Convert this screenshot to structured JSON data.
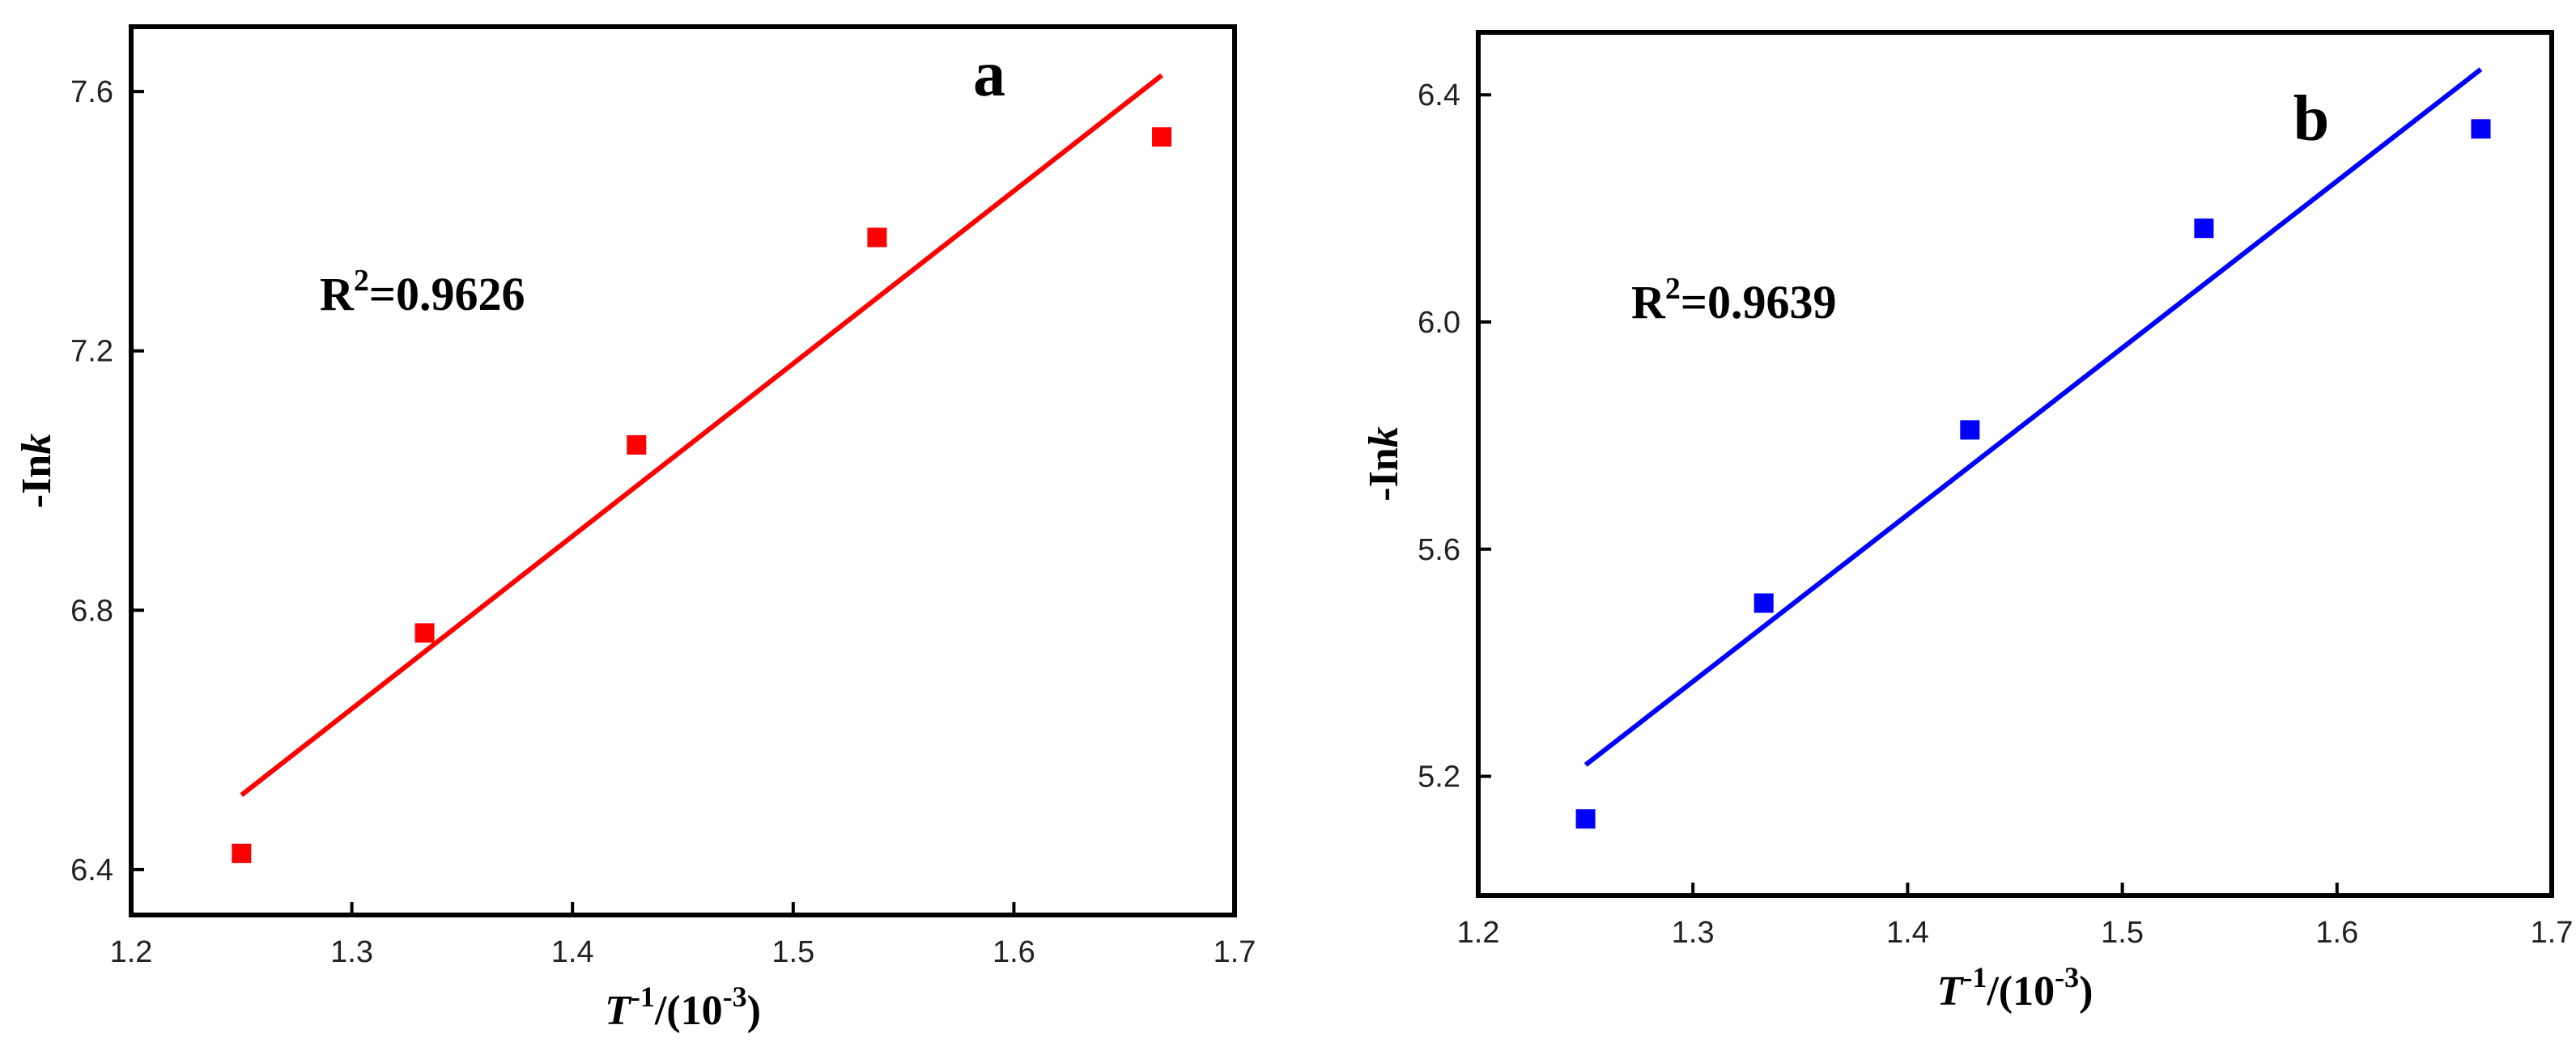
{
  "chart_data": [
    {
      "type": "scatter",
      "panel_label": "a",
      "r2_label": "R",
      "r2_sup": "2",
      "r2_value": "=0.9626",
      "xlabel": "T",
      "xlabel_sup": "-1",
      "xlabel_rest": "/(10",
      "xlabel_rest_sup": "-3",
      "xlabel_close": ")",
      "ylabel_prefix": "-In",
      "ylabel_italic": "k",
      "xlim": [
        1.2,
        1.7
      ],
      "ylim": [
        6.33,
        7.7
      ],
      "xticks": [
        1.2,
        1.3,
        1.4,
        1.5,
        1.6,
        1.7
      ],
      "xtick_labels": [
        "1.2",
        "1.3",
        "1.4",
        "1.5",
        "1.6",
        "1.7"
      ],
      "yticks": [
        6.4,
        6.8,
        7.2,
        7.6
      ],
      "ytick_labels": [
        "6.4",
        "6.8",
        "7.2",
        "7.6"
      ],
      "series": [
        {
          "x": [
            1.25,
            1.333,
            1.429,
            1.538,
            1.667
          ],
          "y": [
            6.425,
            6.765,
            7.055,
            7.375,
            7.53
          ]
        }
      ],
      "fit_line": {
        "x": [
          1.25,
          1.667
        ],
        "y": [
          6.515,
          7.625
        ]
      },
      "color": "#ff0000"
    },
    {
      "type": "scatter",
      "panel_label": "b",
      "r2_label": "R",
      "r2_sup": "2",
      "r2_value": "=0.9639",
      "xlabel": "T",
      "xlabel_sup": "-1",
      "xlabel_rest": "/(10",
      "xlabel_rest_sup": "-3",
      "xlabel_close": ")",
      "ylabel_prefix": "-In",
      "ylabel_italic": "k",
      "xlim": [
        1.2,
        1.7
      ],
      "ylim": [
        4.99,
        6.51
      ],
      "xticks": [
        1.2,
        1.3,
        1.4,
        1.5,
        1.6,
        1.7
      ],
      "xtick_labels": [
        "1.2",
        "1.3",
        "1.4",
        "1.5",
        "1.6",
        "1.7"
      ],
      "yticks": [
        5.2,
        5.6,
        6.0,
        6.4
      ],
      "ytick_labels": [
        "5.2",
        "5.6",
        "6.0",
        "6.4"
      ],
      "series": [
        {
          "x": [
            1.25,
            1.333,
            1.429,
            1.538,
            1.667
          ],
          "y": [
            5.125,
            5.505,
            5.81,
            6.165,
            6.34
          ]
        }
      ],
      "fit_line": {
        "x": [
          1.25,
          1.667
        ],
        "y": [
          5.22,
          6.445
        ]
      },
      "color": "#0000ff"
    }
  ]
}
